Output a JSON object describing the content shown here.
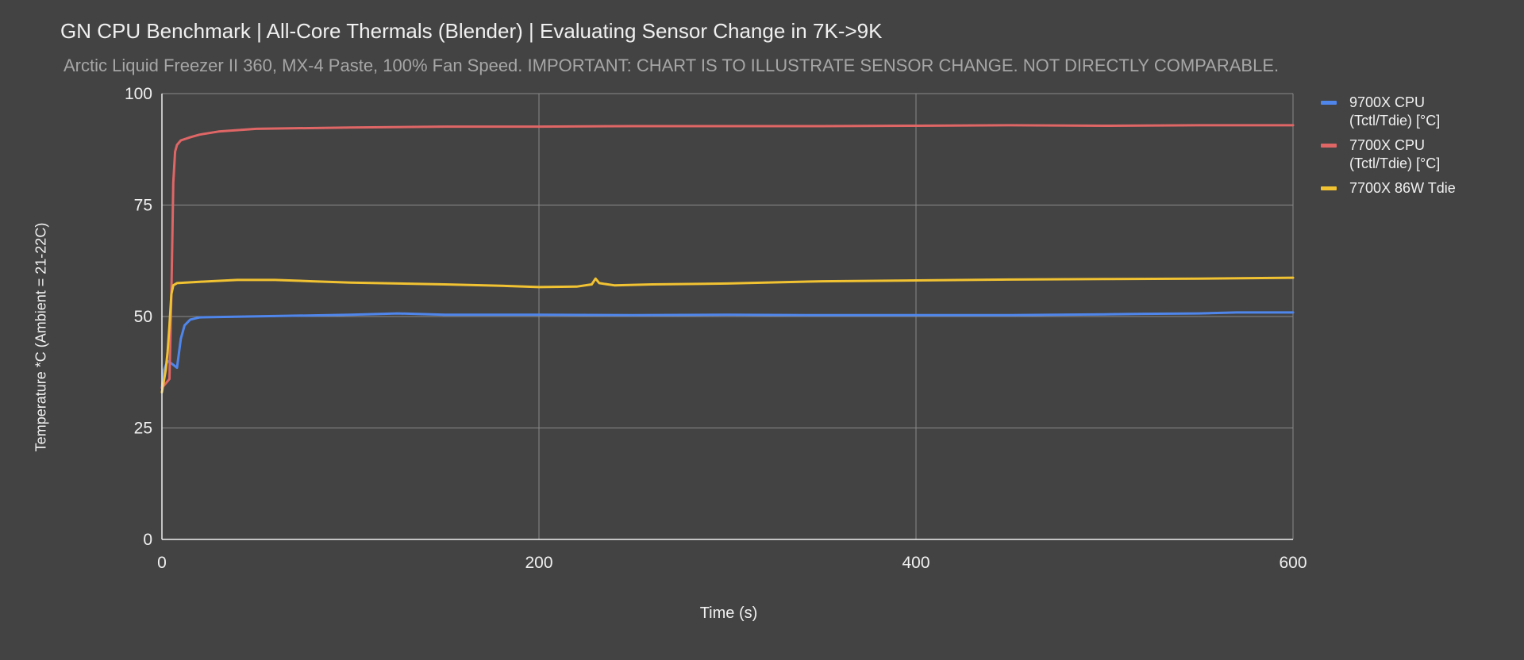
{
  "chart_data": {
    "type": "line",
    "title": "GN CPU Benchmark | All-Core Thermals (Blender) | Evaluating Sensor Change in 7K->9K",
    "subtitle": "Arctic Liquid Freezer II 360, MX-4 Paste, 100% Fan Speed. IMPORTANT: CHART IS TO ILLUSTRATE SENSOR CHANGE. NOT DIRECTLY COMPARABLE.",
    "xlabel": "Time (s)",
    "ylabel": "Temperature *C (Ambient = 21-22C)",
    "xlim": [
      0,
      600
    ],
    "ylim": [
      0,
      100
    ],
    "x_ticks": [
      "0",
      "200",
      "400",
      "600"
    ],
    "y_ticks": [
      "0",
      "25",
      "50",
      "75",
      "100"
    ],
    "grid": true,
    "legend_position": "right",
    "series": [
      {
        "name": "9700X CPU\n(Tctl/Tdie) [°C]",
        "color": "#4f86ec",
        "points": [
          [
            0,
            34
          ],
          [
            1,
            38
          ],
          [
            3,
            40
          ],
          [
            5,
            39.5
          ],
          [
            8,
            38.5
          ],
          [
            10,
            45
          ],
          [
            12,
            48
          ],
          [
            15,
            49.3
          ],
          [
            20,
            49.8
          ],
          [
            30,
            49.9
          ],
          [
            60,
            50.1
          ],
          [
            100,
            50.4
          ],
          [
            125,
            50.7
          ],
          [
            150,
            50.4
          ],
          [
            200,
            50.4
          ],
          [
            250,
            50.3
          ],
          [
            300,
            50.4
          ],
          [
            350,
            50.3
          ],
          [
            400,
            50.3
          ],
          [
            450,
            50.3
          ],
          [
            500,
            50.5
          ],
          [
            520,
            50.6
          ],
          [
            550,
            50.7
          ],
          [
            570,
            50.9
          ],
          [
            600,
            50.9
          ]
        ]
      },
      {
        "name": "7700X CPU\n(Tctl/Tdie) [°C]",
        "color": "#e06666",
        "points": [
          [
            0,
            34
          ],
          [
            2,
            35
          ],
          [
            4,
            36
          ],
          [
            5,
            55
          ],
          [
            6,
            80
          ],
          [
            7,
            87
          ],
          [
            8,
            88.5
          ],
          [
            10,
            89.5
          ],
          [
            15,
            90.2
          ],
          [
            20,
            90.8
          ],
          [
            30,
            91.5
          ],
          [
            50,
            92.1
          ],
          [
            100,
            92.4
          ],
          [
            150,
            92.6
          ],
          [
            200,
            92.6
          ],
          [
            250,
            92.7
          ],
          [
            300,
            92.7
          ],
          [
            350,
            92.7
          ],
          [
            400,
            92.8
          ],
          [
            450,
            92.9
          ],
          [
            500,
            92.8
          ],
          [
            550,
            92.9
          ],
          [
            600,
            92.9
          ]
        ]
      },
      {
        "name": "7700X 86W Tdie",
        "color": "#f1c232",
        "points": [
          [
            0,
            33
          ],
          [
            2,
            38
          ],
          [
            3,
            42
          ],
          [
            4,
            48
          ],
          [
            5,
            55
          ],
          [
            6,
            57
          ],
          [
            8,
            57.5
          ],
          [
            20,
            57.8
          ],
          [
            40,
            58.2
          ],
          [
            60,
            58.2
          ],
          [
            80,
            57.9
          ],
          [
            100,
            57.6
          ],
          [
            150,
            57.2
          ],
          [
            180,
            56.9
          ],
          [
            200,
            56.6
          ],
          [
            220,
            56.7
          ],
          [
            228,
            57.2
          ],
          [
            230,
            58.5
          ],
          [
            232,
            57.5
          ],
          [
            240,
            57
          ],
          [
            260,
            57.2
          ],
          [
            300,
            57.4
          ],
          [
            350,
            57.9
          ],
          [
            400,
            58.1
          ],
          [
            450,
            58.3
          ],
          [
            500,
            58.4
          ],
          [
            550,
            58.5
          ],
          [
            600,
            58.7
          ]
        ]
      }
    ]
  }
}
